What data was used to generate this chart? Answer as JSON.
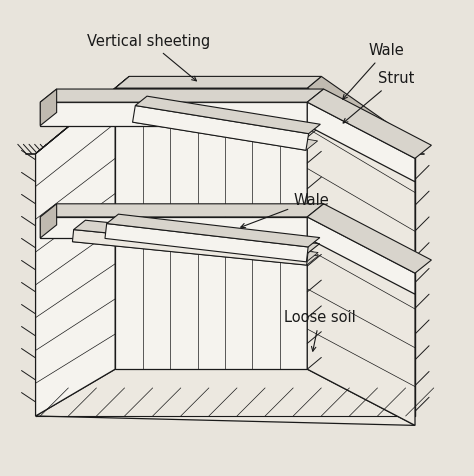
{
  "bg_color": "#e8e4dc",
  "line_color": "#1a1a1a",
  "face_white": "#f5f3ee",
  "face_light": "#ece8e0",
  "face_gray": "#d8d4cc",
  "face_dark": "#c0bab0",
  "labels": {
    "vertical_sheeting": "Vertical sheeting",
    "wale_top": "Wale",
    "strut": "Strut",
    "wale_mid": "Wale",
    "loose_soil": "Loose soil"
  },
  "font_size": 10.5
}
